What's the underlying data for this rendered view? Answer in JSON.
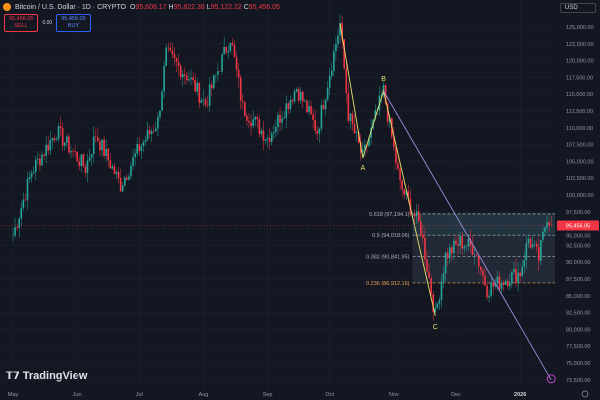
{
  "header": {
    "title": "Bitcoin / U.S. Dollar · 1D · CRYPTO",
    "o": "95,608.17",
    "h": "95,822.38",
    "l": "95,122.22",
    "c": "95,456.05",
    "sell_price": "95,456.05",
    "sell_label": "SELL",
    "spread": "0.00",
    "buy_price": "95,456.05",
    "buy_label": "BUY",
    "currency": "USD"
  },
  "brand": "TradingView",
  "chart_data": {
    "type": "candlestick",
    "title": "Bitcoin / U.S. Dollar · 1D · CRYPTO",
    "x_ticks": [
      "May",
      "Jun",
      "Jul",
      "Aug",
      "Sep",
      "Oct",
      "Nov",
      "Dec",
      "2026"
    ],
    "y_ticks": [
      "125,000.00",
      "122,500.00",
      "120,000.00",
      "117,500.00",
      "115,000.00",
      "112,500.00",
      "110,000.00",
      "107,500.00",
      "105,000.00",
      "102,500.00",
      "100,000.00",
      "97,500.00",
      "95,000.00",
      "92,500.00",
      "90,000.00",
      "87,500.00",
      "85,000.00",
      "82,500.00",
      "80,000.00",
      "77,500.00",
      "75,000.00",
      "72,500.00"
    ],
    "ylim": [
      72500,
      126500
    ],
    "last_price": "95,456.05",
    "price_path": [
      [
        "2025-05-01",
        94000
      ],
      [
        "2025-05-10",
        103500
      ],
      [
        "2025-05-22",
        109500
      ],
      [
        "2025-06-05",
        104000
      ],
      [
        "2025-06-10",
        109000
      ],
      [
        "2025-06-22",
        101500
      ],
      [
        "2025-07-01",
        107000
      ],
      [
        "2025-07-10",
        111000
      ],
      [
        "2025-07-14",
        121000
      ],
      [
        "2025-07-25",
        117500
      ],
      [
        "2025-08-02",
        113500
      ],
      [
        "2025-08-14",
        123500
      ],
      [
        "2025-08-20",
        113000
      ],
      [
        "2025-09-01",
        108500
      ],
      [
        "2025-09-15",
        116000
      ],
      [
        "2025-09-25",
        109500
      ],
      [
        "2025-10-06",
        125500
      ],
      [
        "2025-10-10",
        112000
      ],
      [
        "2025-10-17",
        105500
      ],
      [
        "2025-10-27",
        115500
      ],
      [
        "2025-11-04",
        101500
      ],
      [
        "2025-11-14",
        95000
      ],
      [
        "2025-11-21",
        82000
      ],
      [
        "2025-11-26",
        91000
      ],
      [
        "2025-12-03",
        93000
      ],
      [
        "2025-12-10",
        92000
      ],
      [
        "2025-12-16",
        86000
      ],
      [
        "2025-12-25",
        87500
      ],
      [
        "2026-01-01",
        88500
      ],
      [
        "2026-01-05",
        93500
      ],
      [
        "2026-01-10",
        90500
      ],
      [
        "2026-01-14",
        97000
      ],
      [
        "2026-01-16",
        95456.05
      ]
    ],
    "fib_levels": [
      {
        "ratio": "0.618",
        "label": "0.618 (97,194.1)",
        "price": 97194.1,
        "color": "#b2b5be"
      },
      {
        "ratio": "0.5",
        "label": "0.5 (94,018.06)",
        "price": 94018.06,
        "color": "#b2b5be"
      },
      {
        "ratio": "0.382",
        "label": "0.382 (90,841.95)",
        "price": 90841.95,
        "color": "#b2b5be"
      },
      {
        "ratio": "0.236",
        "label": "0.236 (86,912.16)",
        "price": 86912.16,
        "color": "#f0a050"
      }
    ],
    "waves": {
      "points": [
        [
          "2025-10-06",
          125500
        ],
        [
          "2025-10-17",
          105500
        ],
        [
          "2025-10-27",
          115500
        ],
        [
          "2025-11-21",
          82000
        ]
      ],
      "labels": [
        "A",
        "B",
        "C"
      ],
      "color": "#e8e26a"
    },
    "trendline": {
      "from": [
        "2025-10-27",
        115500
      ],
      "to": [
        "2026-01-16",
        72500
      ],
      "color": "#9b8fe0"
    },
    "colors": {
      "up": "#26a69a",
      "down": "#f23645"
    }
  }
}
